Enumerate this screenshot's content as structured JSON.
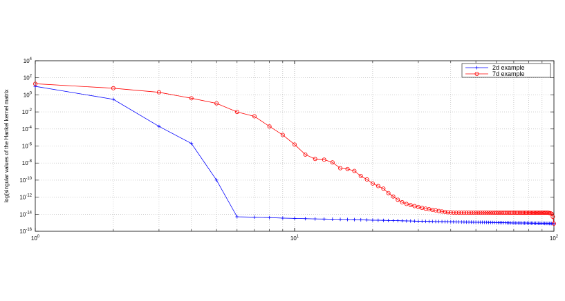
{
  "chart_data": {
    "type": "line",
    "title": "",
    "xlabel": "",
    "ylabel": "log(singular values of the Hankel kernel matrix",
    "xscale": "log",
    "yscale": "log",
    "xlim": [
      1,
      100
    ],
    "ylim": [
      1e-16,
      10000.0
    ],
    "x_ticks": [
      {
        "value": 1,
        "base": "10",
        "exp": "0"
      },
      {
        "value": 10,
        "base": "10",
        "exp": "1"
      },
      {
        "value": 100,
        "base": "10",
        "exp": "2"
      }
    ],
    "y_ticks": [
      {
        "value": 10000.0,
        "base": "10",
        "exp": "4"
      },
      {
        "value": 100.0,
        "base": "10",
        "exp": "2"
      },
      {
        "value": 1.0,
        "base": "10",
        "exp": "0"
      },
      {
        "value": 0.01,
        "base": "10",
        "exp": "-2"
      },
      {
        "value": 0.0001,
        "base": "10",
        "exp": "-4"
      },
      {
        "value": 1e-06,
        "base": "10",
        "exp": "-6"
      },
      {
        "value": 1e-08,
        "base": "10",
        "exp": "-8"
      },
      {
        "value": 1e-10,
        "base": "10",
        "exp": "-10"
      },
      {
        "value": 1e-12,
        "base": "10",
        "exp": "-12"
      },
      {
        "value": 1e-14,
        "base": "10",
        "exp": "-14"
      },
      {
        "value": 1e-16,
        "base": "10",
        "exp": "-16"
      }
    ],
    "grid": true,
    "legend_position": "top-right",
    "series": [
      {
        "name": "2d example",
        "color": "#0000ff",
        "marker": "plus",
        "x": [
          1,
          2,
          3,
          4,
          5,
          6,
          7,
          8,
          9,
          10,
          11,
          12,
          13,
          14,
          15,
          16,
          17,
          18,
          19,
          20,
          21,
          22,
          23,
          24,
          25,
          26,
          27,
          28,
          29,
          30,
          31,
          32,
          33,
          34,
          35,
          36,
          37,
          38,
          39,
          40,
          41,
          42,
          43,
          44,
          45,
          46,
          47,
          48,
          49,
          50,
          51,
          52,
          53,
          54,
          55,
          56,
          57,
          58,
          59,
          60,
          61,
          62,
          63,
          64,
          65,
          66,
          67,
          68,
          69,
          70,
          71,
          72,
          73,
          74,
          75,
          76,
          77,
          78,
          79,
          80,
          81,
          82,
          83,
          84,
          85,
          86,
          87,
          88,
          89,
          90,
          91,
          92,
          93,
          94,
          95,
          96,
          97,
          98,
          99,
          100
        ],
        "y": [
          10.0,
          0.3,
          0.0002,
          2e-06,
          1e-10,
          5e-15,
          4.5e-15,
          4e-15,
          3.5e-15,
          3.2e-15,
          3e-15,
          2.8e-15,
          2.7e-15,
          2.6e-15,
          2.5e-15,
          2.4e-15,
          2.3e-15,
          2.2e-15,
          2.1e-15,
          2e-15,
          1.95e-15,
          1.9e-15,
          1.85e-15,
          1.8e-15,
          1.75e-15,
          1.7e-15,
          1.65e-15,
          1.6e-15,
          1.55e-15,
          1.5e-15,
          1.48e-15,
          1.46e-15,
          1.44e-15,
          1.42e-15,
          1.4e-15,
          1.38e-15,
          1.36e-15,
          1.34e-15,
          1.32e-15,
          1.3e-15,
          1.28e-15,
          1.26e-15,
          1.24e-15,
          1.22e-15,
          1.2e-15,
          1.19e-15,
          1.18e-15,
          1.17e-15,
          1.16e-15,
          1.15e-15,
          1.14e-15,
          1.13e-15,
          1.12e-15,
          1.11e-15,
          1.1e-15,
          1.09e-15,
          1.08e-15,
          1.07e-15,
          1.06e-15,
          1.05e-15,
          1.04e-15,
          1.03e-15,
          1.02e-15,
          1.01e-15,
          1e-15,
          9.9e-16,
          9.8e-16,
          9.7e-16,
          9.6e-16,
          9.5e-16,
          9.45e-16,
          9.4e-16,
          9.35e-16,
          9.3e-16,
          9.25e-16,
          9.2e-16,
          9.15e-16,
          9.1e-16,
          9.05e-16,
          9e-16,
          8.95e-16,
          8.9e-16,
          8.85e-16,
          8.8e-16,
          8.75e-16,
          8.7e-16,
          8.65e-16,
          8.6e-16,
          8.55e-16,
          8.5e-16,
          8.45e-16,
          8.4e-16,
          8.35e-16,
          8.3e-16,
          8.25e-16,
          8.2e-16,
          8.15e-16,
          8.1e-16,
          8.05e-16,
          8e-16
        ]
      },
      {
        "name": "7d example",
        "color": "#ff0000",
        "marker": "circle",
        "x": [
          1,
          2,
          3,
          4,
          5,
          6,
          7,
          8,
          9,
          10,
          11,
          12,
          13,
          14,
          15,
          16,
          17,
          18,
          19,
          20,
          21,
          22,
          23,
          24,
          25,
          26,
          27,
          28,
          29,
          30,
          31,
          32,
          33,
          34,
          35,
          36,
          37,
          38,
          39,
          40,
          41,
          42,
          43,
          44,
          45,
          46,
          47,
          48,
          49,
          50,
          51,
          52,
          53,
          54,
          55,
          56,
          57,
          58,
          59,
          60,
          61,
          62,
          63,
          64,
          65,
          66,
          67,
          68,
          69,
          70,
          71,
          72,
          73,
          74,
          75,
          76,
          77,
          78,
          79,
          80,
          81,
          82,
          83,
          84,
          85,
          86,
          87,
          88,
          89,
          90,
          91,
          92,
          93,
          94,
          95,
          96,
          97,
          98,
          99,
          100
        ],
        "y": [
          20.0,
          6.0,
          2.0,
          0.4,
          0.1,
          0.01,
          0.003,
          0.0002,
          2e-05,
          1.5e-06,
          1e-07,
          3e-08,
          2.5e-08,
          1.2e-08,
          2.5e-09,
          2e-09,
          1.2e-09,
          3e-10,
          1.2e-10,
          4e-11,
          2e-11,
          1e-11,
          3e-12,
          1.2e-12,
          5e-13,
          2.5e-13,
          1.6e-13,
          1.2e-13,
          9e-14,
          7e-14,
          5.5e-14,
          4.5e-14,
          3.8e-14,
          3.2e-14,
          2.8e-14,
          2.4e-14,
          2.1e-14,
          1.9e-14,
          1.7e-14,
          1.6e-14,
          1.55e-14,
          1.5e-14,
          1.5e-14,
          1.5e-14,
          1.5e-14,
          1.5e-14,
          1.5e-14,
          1.5e-14,
          1.5e-14,
          1.5e-14,
          1.5e-14,
          1.5e-14,
          1.5e-14,
          1.5e-14,
          1.5e-14,
          1.5e-14,
          1.5e-14,
          1.5e-14,
          1.5e-14,
          1.5e-14,
          1.5e-14,
          1.5e-14,
          1.5e-14,
          1.5e-14,
          1.5e-14,
          1.5e-14,
          1.5e-14,
          1.5e-14,
          1.5e-14,
          1.5e-14,
          1.5e-14,
          1.5e-14,
          1.5e-14,
          1.5e-14,
          1.5e-14,
          1.5e-14,
          1.5e-14,
          1.5e-14,
          1.5e-14,
          1.5e-14,
          1.5e-14,
          1.5e-14,
          1.5e-14,
          1.5e-14,
          1.5e-14,
          1.5e-14,
          1.5e-14,
          1.5e-14,
          1.5e-14,
          1.5e-14,
          1.5e-14,
          1.5e-14,
          1.5e-14,
          1.5e-14,
          1.5e-14,
          1.4e-14,
          1.3e-14,
          1.1e-14,
          5e-15,
          8e-16
        ]
      }
    ]
  }
}
